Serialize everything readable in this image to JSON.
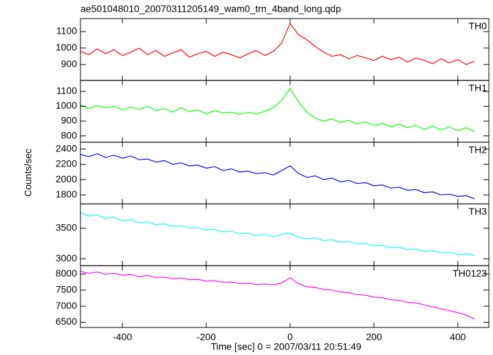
{
  "chart_data": {
    "type": "line",
    "title": "ae501048010_20070311205149_wam0_trn_4band_long.qdp",
    "ylabel": "Counts/sec",
    "xlabel": "Time [sec] 0 = 2007/03/11 20:51:49",
    "x": [
      -500,
      -480,
      -460,
      -440,
      -420,
      -400,
      -380,
      -360,
      -340,
      -320,
      -300,
      -280,
      -260,
      -240,
      -220,
      -200,
      -180,
      -160,
      -140,
      -120,
      -100,
      -80,
      -60,
      -40,
      -20,
      0,
      20,
      40,
      60,
      80,
      100,
      120,
      140,
      160,
      180,
      200,
      220,
      240,
      260,
      280,
      300,
      320,
      340,
      360,
      380,
      400,
      420,
      440
    ],
    "xlim": [
      -500,
      474
    ],
    "xticks": [
      -400,
      -200,
      0,
      200,
      400
    ],
    "series": [
      {
        "name": "TH0",
        "color": "#ff0000",
        "ylim": [
          804,
          1179
        ],
        "yticks": [
          900,
          1000,
          1100
        ],
        "values": [
          980,
          960,
          995,
          965,
          990,
          955,
          975,
          1000,
          960,
          985,
          950,
          970,
          990,
          945,
          965,
          980,
          950,
          975,
          960,
          940,
          965,
          985,
          955,
          980,
          1030,
          1150,
          1080,
          1050,
          1010,
          975,
          950,
          960,
          935,
          955,
          940,
          925,
          950,
          930,
          945,
          915,
          940,
          925,
          905,
          935,
          910,
          930,
          900,
          920
        ]
      },
      {
        "name": "TH1",
        "color": "#00ff00",
        "ylim": [
          758,
          1175
        ],
        "yticks": [
          800,
          900,
          1000,
          1100
        ],
        "values": [
          1010,
          985,
          1005,
          990,
          1000,
          975,
          995,
          980,
          1000,
          970,
          985,
          960,
          990,
          965,
          975,
          950,
          970,
          955,
          960,
          945,
          960,
          950,
          965,
          990,
          1040,
          1120,
          1030,
          960,
          920,
          900,
          915,
          890,
          905,
          880,
          895,
          870,
          885,
          860,
          880,
          855,
          870,
          845,
          865,
          840,
          860,
          835,
          855,
          830
        ]
      },
      {
        "name": "TH2",
        "color": "#0000ff",
        "ylim": [
          1682,
          2491
        ],
        "yticks": [
          1800,
          2000,
          2200,
          2400
        ],
        "values": [
          2330,
          2300,
          2340,
          2290,
          2320,
          2280,
          2310,
          2260,
          2270,
          2230,
          2250,
          2200,
          2220,
          2180,
          2190,
          2150,
          2170,
          2120,
          2140,
          2100,
          2110,
          2080,
          2090,
          2060,
          2120,
          2180,
          2080,
          2030,
          2050,
          2000,
          2020,
          1970,
          1990,
          1950,
          1960,
          1920,
          1930,
          1890,
          1900,
          1860,
          1870,
          1830,
          1840,
          1800,
          1810,
          1780,
          1790,
          1750
        ]
      },
      {
        "name": "TH3",
        "color": "#00ffff",
        "ylim": [
          2886,
          3898
        ],
        "yticks": [
          3000,
          3500
        ],
        "values": [
          3750,
          3700,
          3720,
          3660,
          3680,
          3620,
          3640,
          3590,
          3600,
          3560,
          3570,
          3530,
          3540,
          3500,
          3510,
          3470,
          3480,
          3440,
          3450,
          3410,
          3420,
          3380,
          3400,
          3360,
          3400,
          3420,
          3350,
          3330,
          3340,
          3300,
          3310,
          3270,
          3280,
          3240,
          3250,
          3210,
          3220,
          3180,
          3190,
          3150,
          3160,
          3120,
          3130,
          3100,
          3110,
          3070,
          3080,
          3050
        ]
      },
      {
        "name": "TH0123",
        "color": "#ff00ff",
        "ylim": [
          6340,
          8255
        ],
        "yticks": [
          6500,
          7000,
          7500,
          8000
        ],
        "values": [
          8080,
          8020,
          8060,
          7990,
          8020,
          7960,
          7980,
          7920,
          7950,
          7890,
          7900,
          7850,
          7880,
          7820,
          7830,
          7780,
          7790,
          7740,
          7750,
          7700,
          7710,
          7670,
          7690,
          7660,
          7720,
          7880,
          7700,
          7600,
          7580,
          7520,
          7500,
          7440,
          7420,
          7360,
          7340,
          7280,
          7260,
          7200,
          7180,
          7120,
          7100,
          7040,
          6980,
          6920,
          6860,
          6800,
          6720,
          6600
        ]
      }
    ]
  }
}
